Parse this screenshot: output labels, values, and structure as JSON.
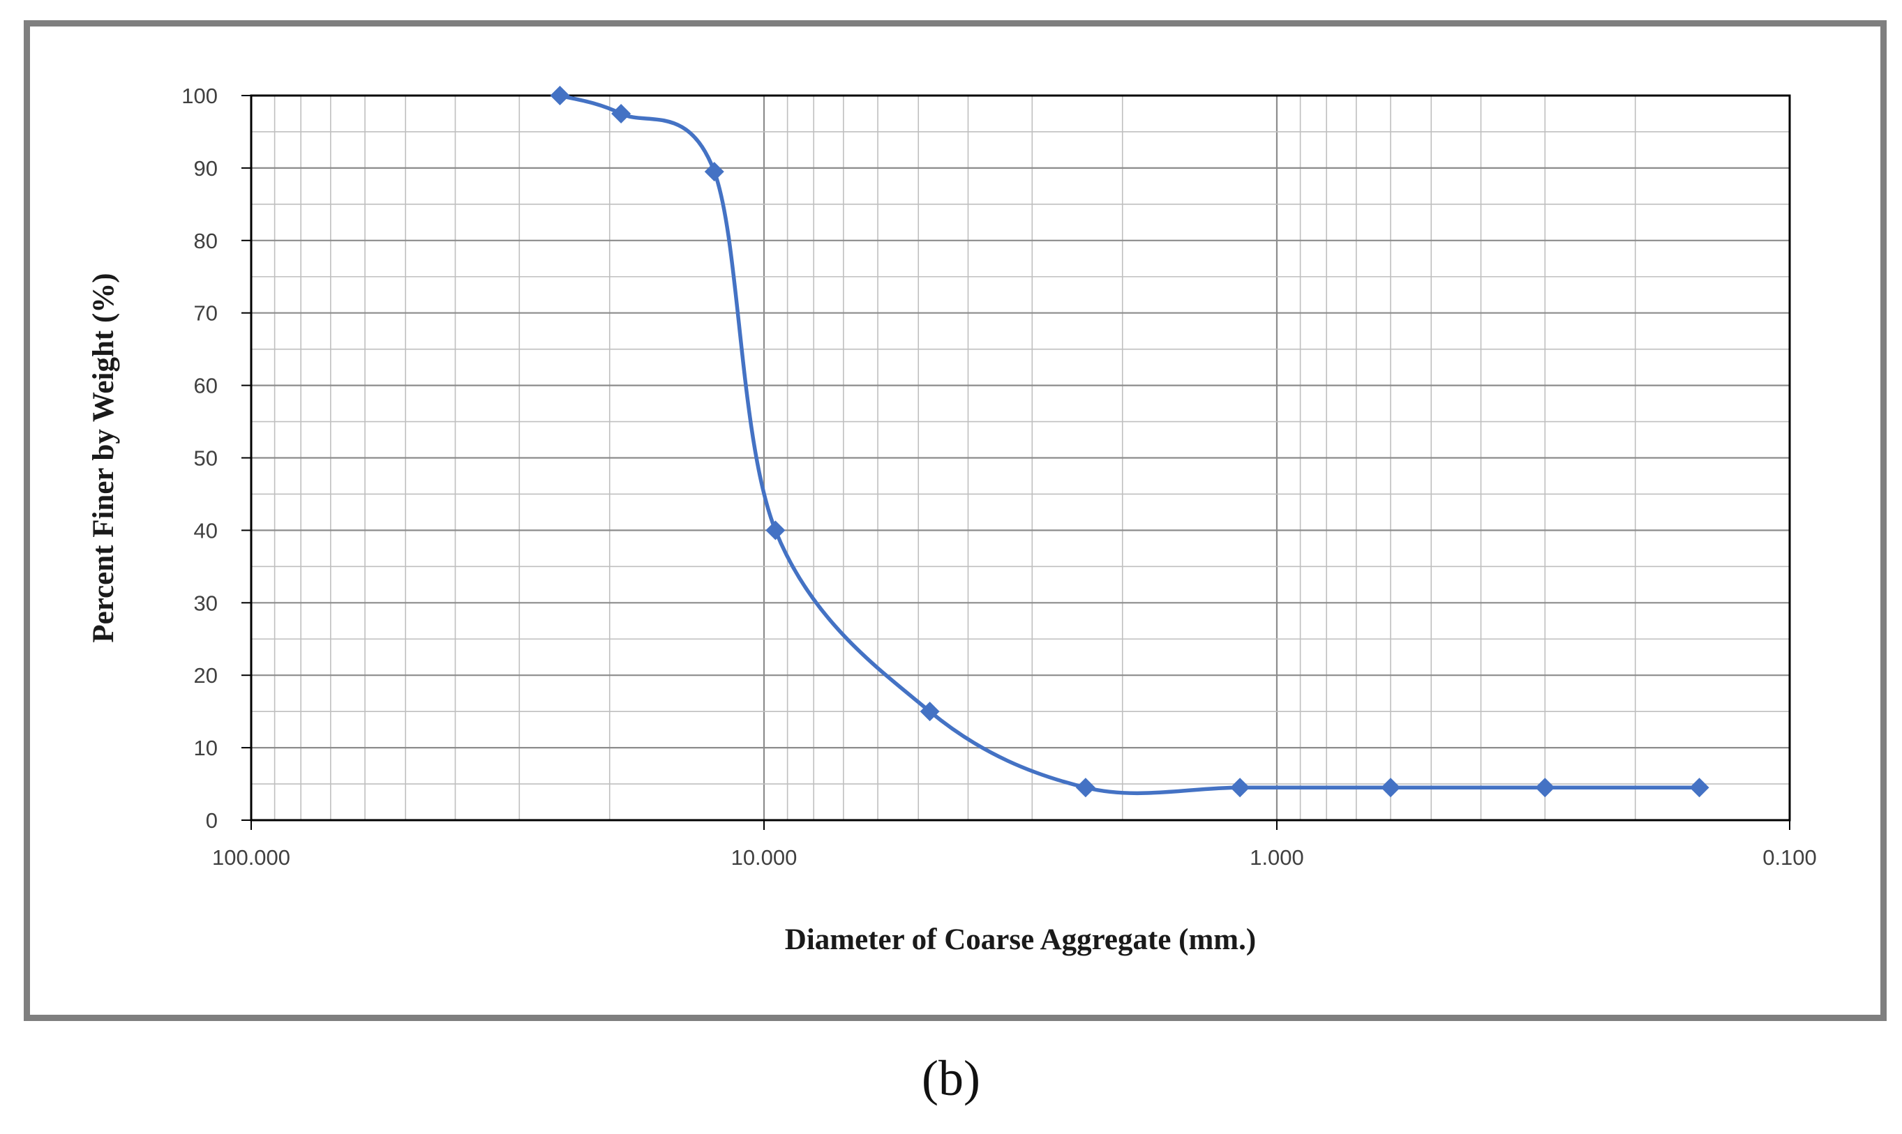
{
  "panel_label": "(b)",
  "chart_data": {
    "type": "line",
    "xlabel": "Diameter of Coarse Aggregate (mm.)",
    "ylabel": "Percent Finer by Weight (%)",
    "x_scale": "log",
    "x_reversed": true,
    "xlim": [
      100,
      0.1
    ],
    "ylim": [
      0,
      100
    ],
    "x_ticks": [
      100,
      10,
      1,
      0.1
    ],
    "x_tick_labels": [
      "100.000",
      "10.000",
      "1.000",
      "0.100"
    ],
    "y_ticks": [
      0,
      10,
      20,
      30,
      40,
      50,
      60,
      70,
      80,
      90,
      100
    ],
    "grid": true,
    "legend": "none",
    "series": [
      {
        "color": "#4472c4",
        "marker": "diamond",
        "x": [
          25,
          19,
          12.5,
          9.5,
          4.75,
          2.36,
          1.18,
          0.6,
          0.3,
          0.15
        ],
        "y": [
          100,
          97.5,
          89.5,
          40,
          15,
          4.5,
          4.5,
          4.5,
          4.5,
          4.5
        ]
      }
    ]
  }
}
